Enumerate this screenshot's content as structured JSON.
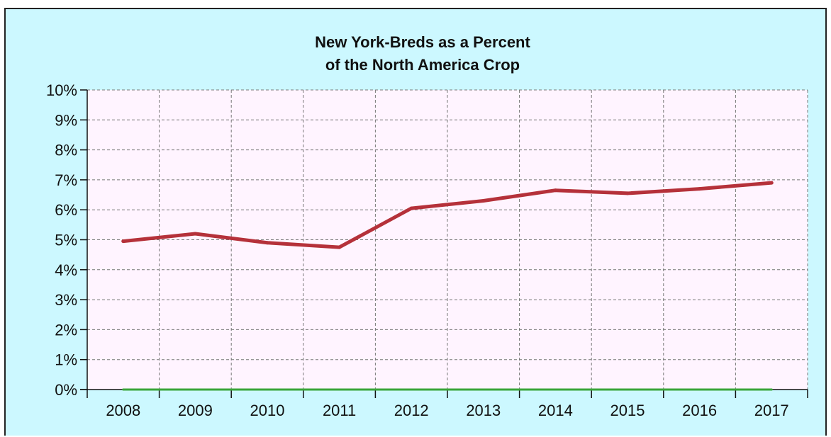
{
  "chart_data": {
    "type": "line",
    "title": "New York-Breds as a Percent of the North America Crop",
    "title_lines": [
      "New York-Breds as a Percent",
      "of the North America Crop"
    ],
    "xlabel": "",
    "ylabel": "",
    "categories": [
      "2008",
      "2009",
      "2010",
      "2011",
      "2012",
      "2013",
      "2014",
      "2015",
      "2016",
      "2017"
    ],
    "ylim": [
      0,
      10
    ],
    "yticks": [
      "0%",
      "1%",
      "2%",
      "3%",
      "4%",
      "5%",
      "6%",
      "7%",
      "8%",
      "9%",
      "10%"
    ],
    "grid": true,
    "legend": "none",
    "series": [
      {
        "color": "#b5313a",
        "values": [
          4.95,
          5.2,
          4.9,
          4.75,
          6.05,
          6.3,
          6.65,
          6.55,
          6.7,
          6.9
        ]
      },
      {
        "color": "#3aa53a",
        "values": [
          0,
          0,
          0,
          0,
          0,
          0,
          0,
          0,
          0,
          0
        ]
      }
    ],
    "background_color": "#ccf8ff",
    "plot_background_color": "#fff4ff"
  }
}
